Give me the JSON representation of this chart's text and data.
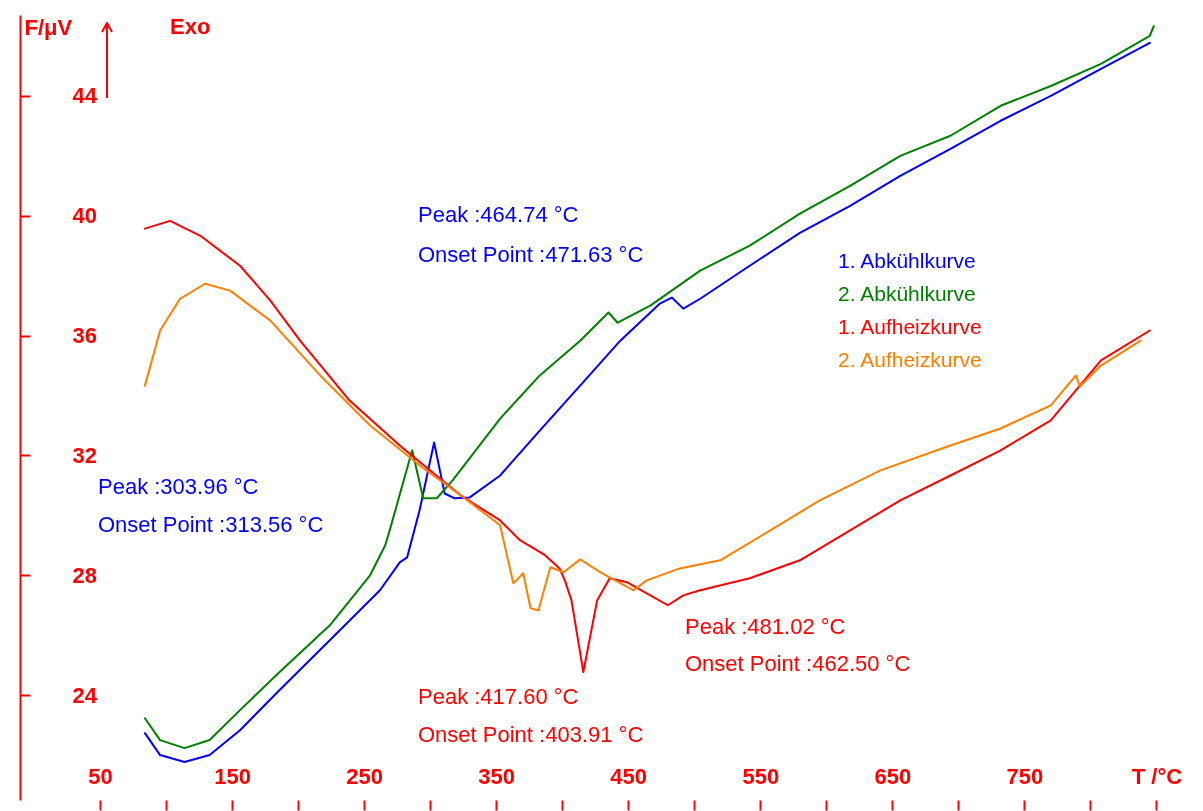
{
  "chart_data": {
    "type": "line",
    "ylabel": "F/μV",
    "xlim": [
      -10.6,
      883
    ],
    "ylim": [
      20.5,
      46.7
    ],
    "xticks": [
      50,
      {
        "value": 100,
        "label": null
      },
      150,
      {
        "value": 200,
        "label": null
      },
      250,
      {
        "value": 300,
        "label": null
      },
      350,
      {
        "value": 400,
        "label": null
      },
      450,
      {
        "value": 500,
        "label": null
      },
      550,
      {
        "value": 600,
        "label": null
      },
      650,
      {
        "value": 700,
        "label": null
      },
      750,
      {
        "value": 800,
        "label": null
      },
      {
        "value": 850,
        "label": "T /°C"
      }
    ],
    "yticks": [
      24,
      28,
      32,
      36,
      40,
      44
    ],
    "line_style": "solid",
    "series": [
      {
        "name": "1. Abkühlkurve",
        "color": "#0000ff",
        "x": [
          84,
          95.5,
          114,
          133,
          156,
          186,
          224,
          262,
          277,
          282.6,
          292,
          303,
          311,
          318.6,
          330,
          353,
          383,
          413.6,
          444,
          474,
          483,
          491.7,
          504.5,
          542,
          580,
          618,
          656,
          694,
          732,
          770,
          808,
          845
        ],
        "values": [
          22.73,
          22.0,
          21.77,
          22.0,
          22.83,
          24.17,
          25.83,
          27.5,
          28.43,
          28.6,
          30.17,
          32.43,
          30.73,
          30.57,
          30.6,
          31.33,
          32.83,
          34.33,
          35.83,
          37.07,
          37.27,
          36.9,
          37.23,
          38.33,
          39.43,
          40.33,
          41.33,
          42.23,
          43.17,
          44.0,
          44.9,
          45.77
        ]
      },
      {
        "name": "2. Abkühlkurve",
        "color": "#008000",
        "x": [
          84,
          95.5,
          114,
          133,
          156,
          186,
          224,
          254.5,
          266,
          270,
          286.4,
          294.7,
          305,
          317,
          353,
          383,
          413.6,
          435,
          442,
          466.7,
          504.5,
          542,
          580,
          618,
          656,
          694,
          732,
          770,
          808,
          845,
          848
        ],
        "values": [
          23.23,
          22.5,
          22.23,
          22.5,
          23.5,
          24.77,
          26.33,
          28.0,
          29.0,
          29.6,
          32.17,
          30.57,
          30.57,
          31.17,
          33.23,
          34.67,
          35.83,
          36.77,
          36.43,
          37.0,
          38.17,
          39.0,
          40.07,
          41.0,
          42.0,
          42.67,
          43.67,
          44.33,
          45.07,
          46.0,
          46.33
        ]
      },
      {
        "name": "1. Aufheizkurve",
        "color": "#ff0000",
        "x": [
          84,
          103,
          126,
          156,
          179,
          201.5,
          239,
          277,
          300,
          323,
          353,
          368,
          387,
          398,
          402,
          407,
          416,
          426.5,
          436,
          449,
          464,
          480,
          491.7,
          504.5,
          542,
          580,
          618,
          656,
          694,
          732,
          770,
          808,
          845
        ],
        "values": [
          39.57,
          39.83,
          39.33,
          38.33,
          37.17,
          35.83,
          33.83,
          32.33,
          31.5,
          30.67,
          29.83,
          29.17,
          28.67,
          28.23,
          27.83,
          27.17,
          24.77,
          27.17,
          27.9,
          27.77,
          27.4,
          27.0,
          27.33,
          27.5,
          27.9,
          28.5,
          29.5,
          30.5,
          31.33,
          32.17,
          33.17,
          35.17,
          36.17
        ]
      },
      {
        "name": "2. Aufheizkurve",
        "color": "#ff7f00",
        "x": [
          84,
          95.5,
          110.6,
          129.5,
          148.5,
          179,
          216.7,
          254.5,
          292,
          323,
          353,
          363,
          370.5,
          376,
          382,
          391,
          401,
          413.6,
          429,
          454,
          464,
          489,
          519.7,
          557.6,
          595,
          641,
          694,
          732,
          770,
          789,
          792,
          808,
          838
        ],
        "values": [
          34.33,
          36.17,
          37.23,
          37.73,
          37.5,
          36.5,
          34.67,
          33.0,
          31.67,
          30.67,
          29.67,
          27.73,
          28.07,
          26.9,
          26.83,
          28.27,
          28.1,
          28.53,
          28.1,
          27.5,
          27.83,
          28.23,
          28.5,
          29.5,
          30.5,
          31.5,
          32.33,
          32.9,
          33.67,
          34.67,
          34.3,
          35.0,
          35.83
        ]
      }
    ],
    "annotations": [
      "Exo",
      "Peak :464.74 °C",
      "Onset Point :471.63 °C",
      "Peak :303.96 °C",
      "Onset Point :313.56 °C",
      "Peak :417.60 °C",
      "Onset Point :403.91 °C",
      "Peak :481.02 °C",
      "Onset Point :462.50 °C"
    ]
  }
}
